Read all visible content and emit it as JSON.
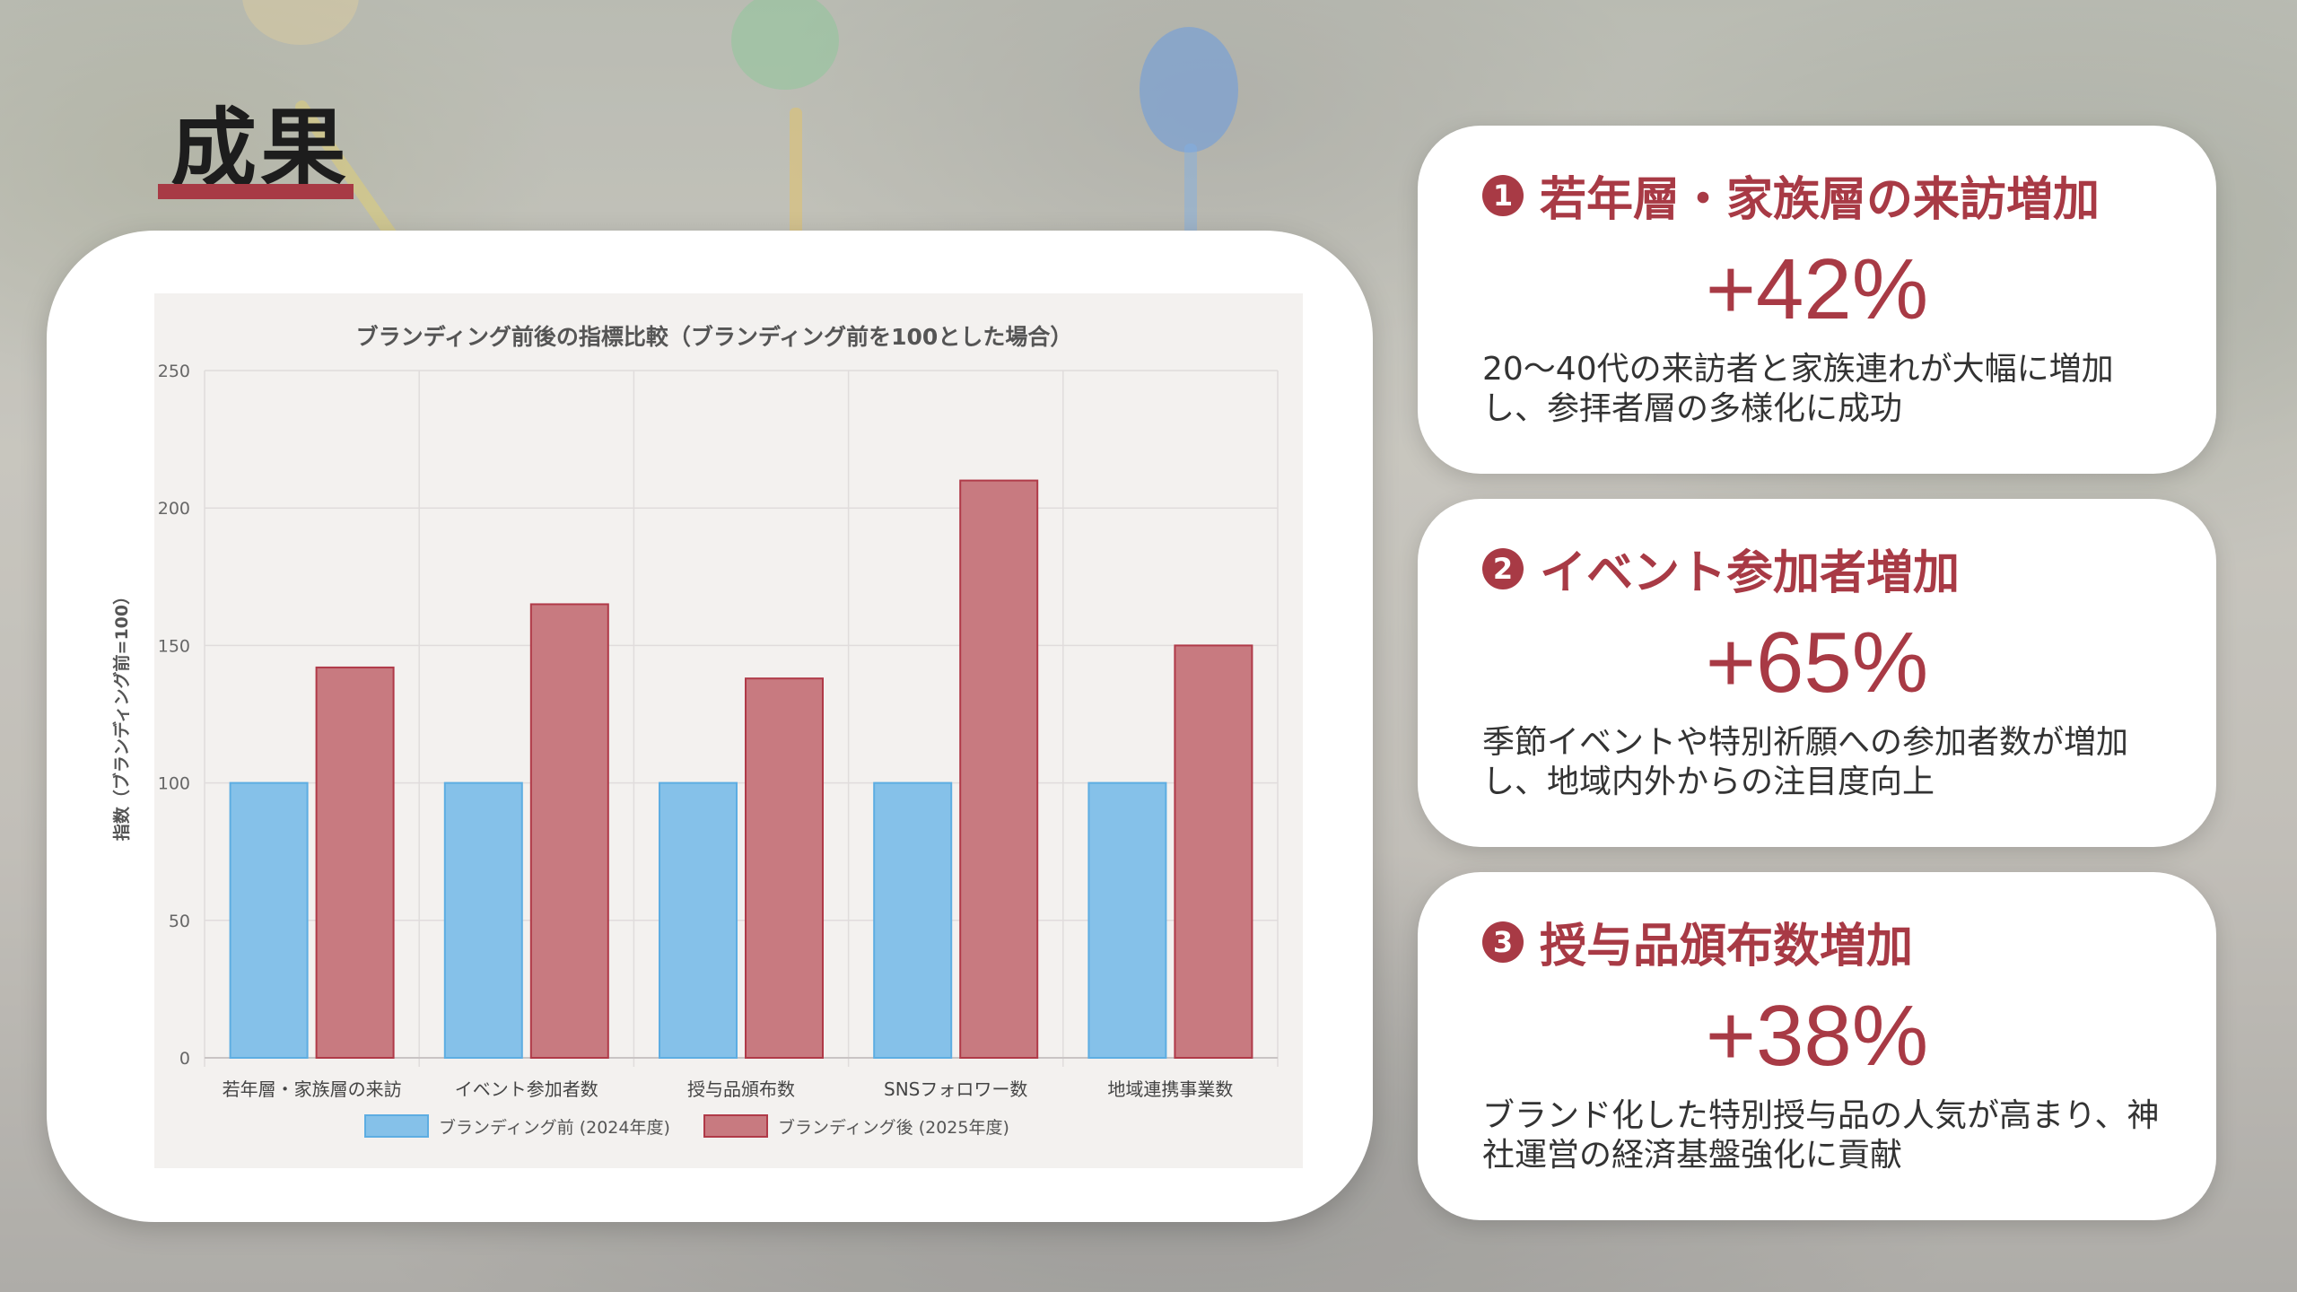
{
  "page": {
    "title": "成果"
  },
  "colors": {
    "accent": "#a83a45",
    "before_fill": "#85c1e9",
    "before_stroke": "#5dade2",
    "after_fill": "#c87a80",
    "after_stroke": "#b03a48"
  },
  "cards": [
    {
      "number": "1",
      "title": "若年層・家族層の来訪増加",
      "value": "+42%",
      "description": "20〜40代の来訪者と家族連れが大幅に増加し、参拝者層の多様化に成功"
    },
    {
      "number": "2",
      "title": "イベント参加者増加",
      "value": "+65%",
      "description": "季節イベントや特別祈願への参加者数が増加し、地域内外からの注目度向上"
    },
    {
      "number": "3",
      "title": "授与品頒布数増加",
      "value": "+38%",
      "description": "ブランド化した特別授与品の人気が高まり、神社運営の経済基盤強化に貢献"
    }
  ],
  "chart_data": {
    "type": "bar",
    "title": "ブランディング前後の指標比較（ブランディング前を100とした場合）",
    "ylabel": "指数（ブランディング前=100）",
    "xlabel": "",
    "ylim": [
      0,
      250
    ],
    "yticks": [
      "0",
      "50",
      "100",
      "150",
      "200",
      "250"
    ],
    "categories": [
      "若年層・家族層の来訪",
      "イベント参加者数",
      "授与品頒布数",
      "SNSフォロワー数",
      "地域連携事業数"
    ],
    "series": [
      {
        "name": "ブランディング前 (2024年度)",
        "values": [
          100,
          100,
          100,
          100,
          100
        ]
      },
      {
        "name": "ブランディング後 (2025年度)",
        "values": [
          142,
          165,
          138,
          210,
          150
        ]
      }
    ],
    "grid": true,
    "legend": "bottom"
  }
}
